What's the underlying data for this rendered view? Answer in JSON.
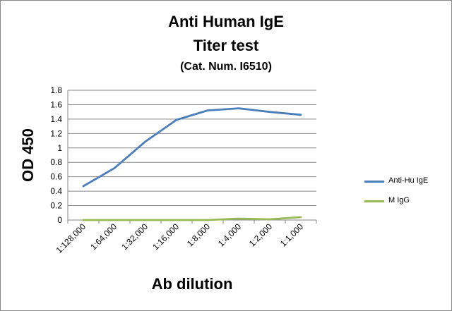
{
  "chart_data": {
    "type": "line",
    "title_lines": [
      "Anti Human IgE",
      "Titer test",
      "(Cat. Num. I6510)"
    ],
    "xlabel": "Ab dilution",
    "ylabel": "OD 450",
    "categories": [
      "1:128,000",
      "1:64,000",
      "1:32,000",
      "1:16,000",
      "1:8,000",
      "1:4,000",
      "1:2,000",
      "1:1,000"
    ],
    "ylim": [
      0,
      1.8
    ],
    "yticks": [
      "0",
      "0.2",
      "0.4",
      "0.6",
      "0.8",
      "1",
      "1.2",
      "1.4",
      "1.6",
      "1.8"
    ],
    "grid": true,
    "legend_position": "right",
    "series": [
      {
        "name": "Anti-Hu IgE",
        "color": "#4a7ebb",
        "values": [
          0.47,
          0.72,
          1.09,
          1.39,
          1.52,
          1.55,
          1.5,
          1.46
        ]
      },
      {
        "name": "M IgG",
        "color": "#98b954",
        "values": [
          0.0,
          0.0,
          0.0,
          0.0,
          0.0,
          0.02,
          0.01,
          0.04
        ]
      }
    ]
  }
}
